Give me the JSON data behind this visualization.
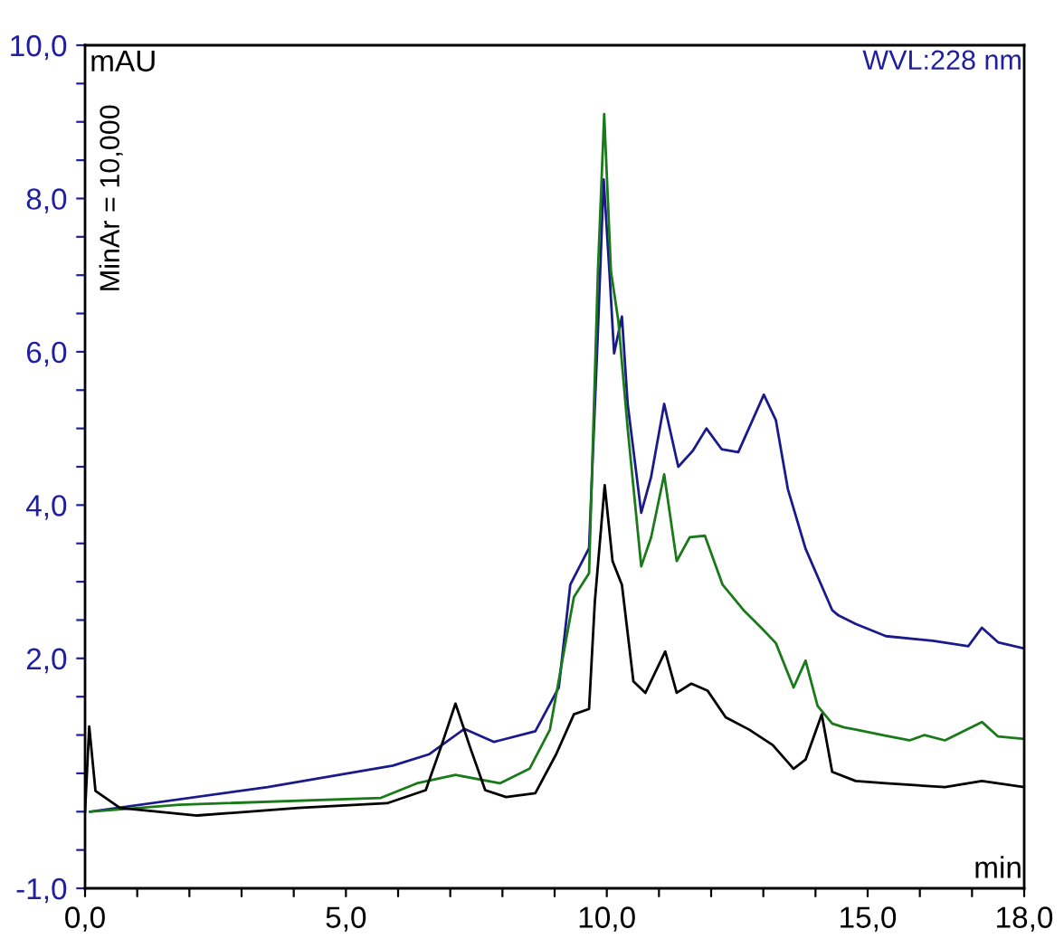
{
  "chart_data": {
    "type": "line",
    "xlabel": "min",
    "ylabel": "mAU",
    "annotations": [
      "WVL:228 nm",
      "MinAr = 10,000"
    ],
    "xlim": [
      0,
      18
    ],
    "ylim": [
      -1,
      10
    ],
    "xticks": [
      {
        "value": 0,
        "label": "0,0"
      },
      {
        "value": 1,
        "label": null
      },
      {
        "value": 2,
        "label": null
      },
      {
        "value": 3,
        "label": null
      },
      {
        "value": 4,
        "label": null
      },
      {
        "value": 5,
        "label": "5,0"
      },
      {
        "value": 6,
        "label": null
      },
      {
        "value": 7,
        "label": null
      },
      {
        "value": 8,
        "label": null
      },
      {
        "value": 9,
        "label": null
      },
      {
        "value": 10,
        "label": "10,0"
      },
      {
        "value": 11,
        "label": null
      },
      {
        "value": 12,
        "label": null
      },
      {
        "value": 13,
        "label": null
      },
      {
        "value": 14,
        "label": null
      },
      {
        "value": 15,
        "label": "15,0"
      },
      {
        "value": 16,
        "label": null
      },
      {
        "value": 17,
        "label": null
      },
      {
        "value": 18,
        "label": "18,0"
      }
    ],
    "yticks": [
      {
        "value": -1,
        "label": "-1,0"
      },
      {
        "value": -0.5,
        "label": null
      },
      {
        "value": 0,
        "label": null
      },
      {
        "value": 0.5,
        "label": null
      },
      {
        "value": 1,
        "label": null
      },
      {
        "value": 1.5,
        "label": null
      },
      {
        "value": 2,
        "label": "2,0"
      },
      {
        "value": 2.5,
        "label": null
      },
      {
        "value": 3,
        "label": null
      },
      {
        "value": 3.5,
        "label": null
      },
      {
        "value": 4,
        "label": "4,0"
      },
      {
        "value": 4.5,
        "label": null
      },
      {
        "value": 5,
        "label": null
      },
      {
        "value": 5.5,
        "label": null
      },
      {
        "value": 6,
        "label": "6,0"
      },
      {
        "value": 6.5,
        "label": null
      },
      {
        "value": 7,
        "label": null
      },
      {
        "value": 7.5,
        "label": null
      },
      {
        "value": 8,
        "label": "8,0"
      },
      {
        "value": 8.5,
        "label": null
      },
      {
        "value": 9,
        "label": null
      },
      {
        "value": 9.5,
        "label": null
      },
      {
        "value": 10,
        "label": "10,0"
      }
    ],
    "grid": false,
    "legend": false,
    "marker": "none",
    "line_style": "solid",
    "series": [
      {
        "color": "#1a1a8c",
        "x": [
          0.1,
          3.5,
          5.9,
          6.6,
          7.27,
          7.84,
          7.95,
          8.63,
          9.08,
          9.3,
          9.66,
          9.83,
          9.94,
          10.05,
          10.14,
          10.29,
          10.4,
          10.66,
          10.85,
          11.1,
          11.37,
          11.65,
          11.91,
          12.2,
          12.52,
          13.01,
          13.24,
          13.47,
          13.81,
          14.32,
          14.44,
          14.77,
          15.35,
          16.25,
          16.93,
          17.19,
          17.5,
          18.0
        ],
        "values": [
          0.0,
          0.32,
          0.6,
          0.75,
          1.08,
          0.91,
          0.93,
          1.05,
          1.62,
          2.96,
          3.44,
          6.27,
          8.25,
          7.05,
          5.98,
          6.46,
          5.32,
          3.9,
          4.37,
          5.32,
          4.5,
          4.71,
          5.0,
          4.73,
          4.69,
          5.44,
          5.11,
          4.21,
          3.43,
          2.63,
          2.56,
          2.45,
          2.29,
          2.23,
          2.16,
          2.4,
          2.21,
          2.13
        ]
      },
      {
        "color": "#1a7a1a",
        "x": [
          0.1,
          1.81,
          5.67,
          6.36,
          7.1,
          7.95,
          8.52,
          8.91,
          9.2,
          9.37,
          9.66,
          9.83,
          9.95,
          10.08,
          10.22,
          10.4,
          10.66,
          10.85,
          11.1,
          11.34,
          11.59,
          11.88,
          12.22,
          12.62,
          12.96,
          13.24,
          13.58,
          13.81,
          14.04,
          14.32,
          14.55,
          14.78,
          15.35,
          15.8,
          16.09,
          16.48,
          17.19,
          17.5,
          18.0
        ],
        "values": [
          0.0,
          0.09,
          0.18,
          0.37,
          0.48,
          0.37,
          0.56,
          1.07,
          2.17,
          2.8,
          3.11,
          7.05,
          9.1,
          7.05,
          6.41,
          5.0,
          3.2,
          3.58,
          4.4,
          3.27,
          3.58,
          3.6,
          2.96,
          2.63,
          2.4,
          2.2,
          1.62,
          1.97,
          1.38,
          1.15,
          1.1,
          1.07,
          0.99,
          0.93,
          1.0,
          0.93,
          1.17,
          0.98,
          0.95
        ]
      },
      {
        "color": "#000000",
        "x": [
          0.0,
          0.08,
          0.2,
          0.67,
          2.15,
          4.09,
          5.79,
          6.53,
          6.82,
          7.1,
          7.38,
          7.67,
          8.07,
          8.63,
          9.03,
          9.37,
          9.66,
          9.77,
          9.96,
          10.11,
          10.29,
          10.51,
          10.74,
          11.12,
          11.34,
          11.62,
          11.93,
          12.28,
          12.73,
          13.18,
          13.58,
          13.81,
          14.12,
          14.32,
          14.77,
          15.35,
          16.48,
          17.19,
          18.0
        ],
        "values": [
          0.0,
          1.11,
          0.27,
          0.05,
          -0.05,
          0.05,
          0.11,
          0.28,
          0.84,
          1.41,
          0.84,
          0.28,
          0.19,
          0.24,
          0.75,
          1.27,
          1.34,
          2.73,
          4.26,
          3.27,
          2.96,
          1.7,
          1.55,
          2.09,
          1.55,
          1.67,
          1.58,
          1.23,
          1.07,
          0.87,
          0.56,
          0.68,
          1.27,
          0.52,
          0.4,
          0.37,
          0.32,
          0.4,
          0.32
        ]
      }
    ]
  }
}
